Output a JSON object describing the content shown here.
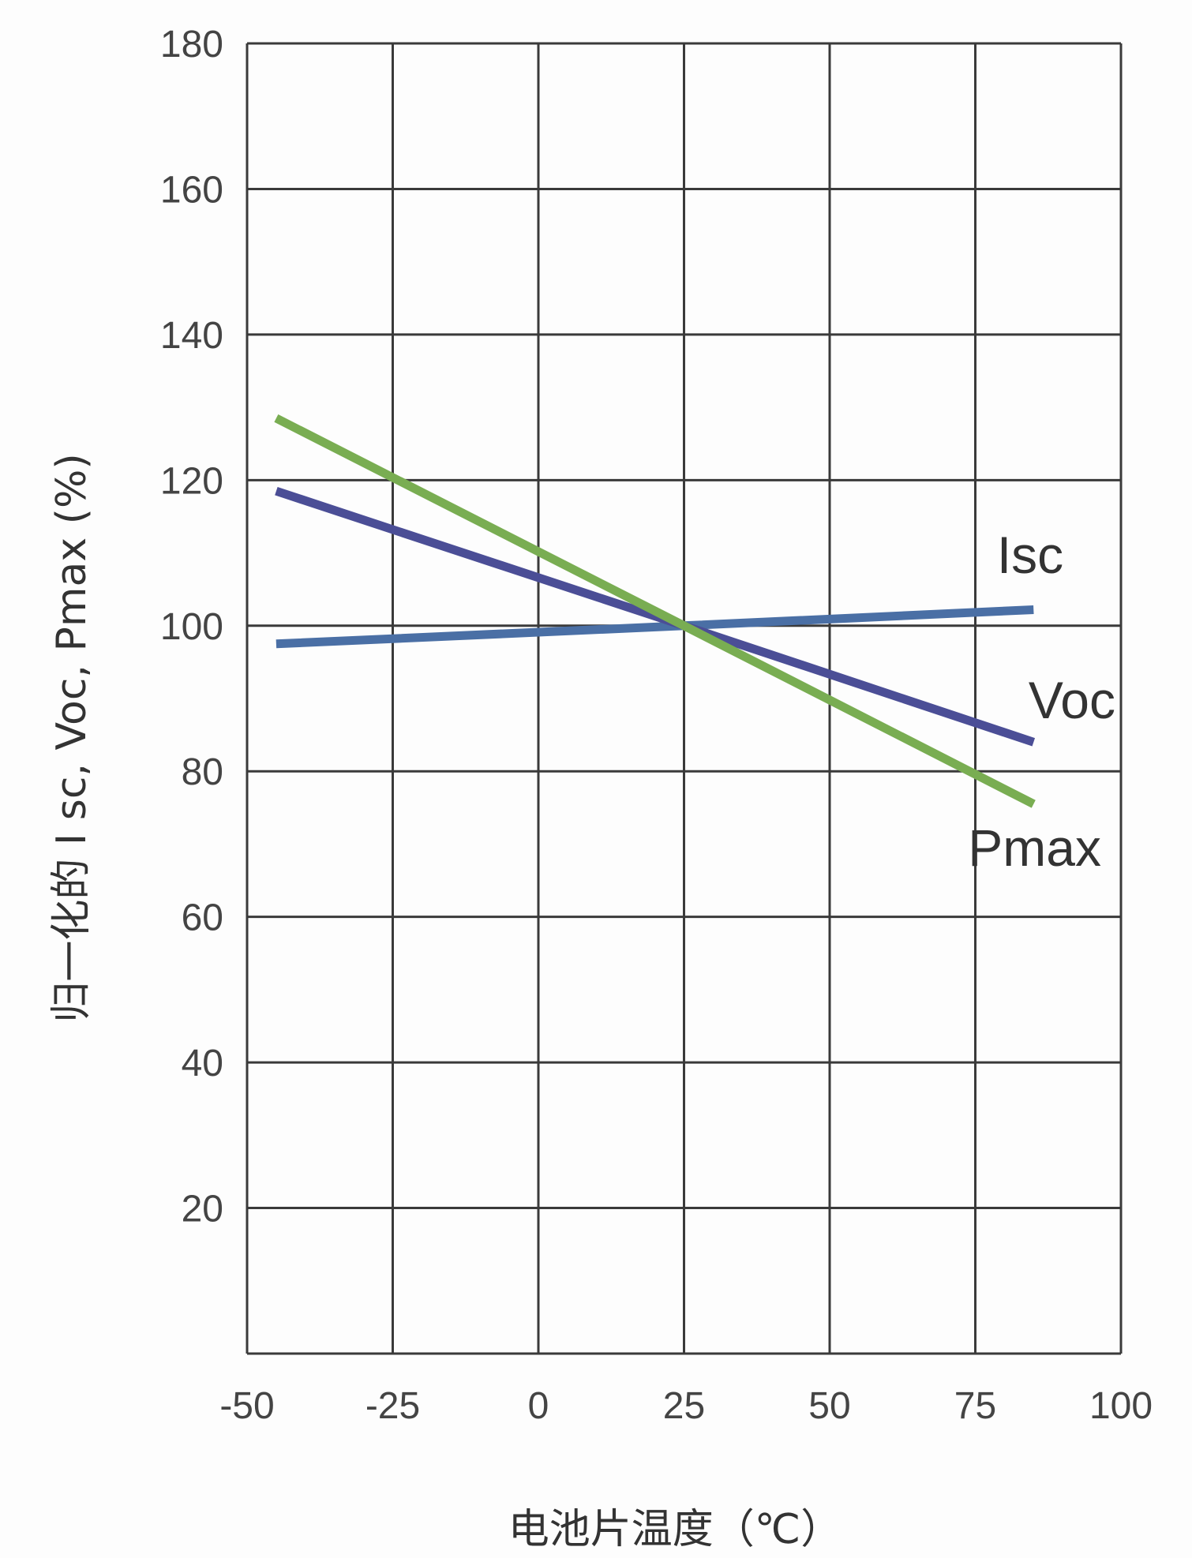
{
  "chart_data": {
    "type": "line",
    "title": "",
    "xlabel": "电池片温度（℃）",
    "ylabel": "归一化的 I sc, Voc, Pmax (%)",
    "xlim": [
      -50,
      100
    ],
    "ylim": [
      0,
      180
    ],
    "xticks": [
      -50,
      -25,
      0,
      25,
      50,
      75,
      100
    ],
    "yticks": [
      20,
      40,
      60,
      80,
      100,
      120,
      140,
      160,
      180
    ],
    "grid": true,
    "legend": "inline labels at right end of each line",
    "series": [
      {
        "name": "Isc",
        "color": "#4a6fa5",
        "x": [
          -45,
          25,
          85
        ],
        "y": [
          97.5,
          100,
          102.2
        ]
      },
      {
        "name": "Voc",
        "color": "#4b4e96",
        "x": [
          -45,
          25,
          85
        ],
        "y": [
          118.5,
          100,
          84
        ]
      },
      {
        "name": "Pmax",
        "color": "#79ad52",
        "x": [
          -45,
          25,
          85
        ],
        "y": [
          128.5,
          100,
          75.5
        ]
      }
    ]
  }
}
